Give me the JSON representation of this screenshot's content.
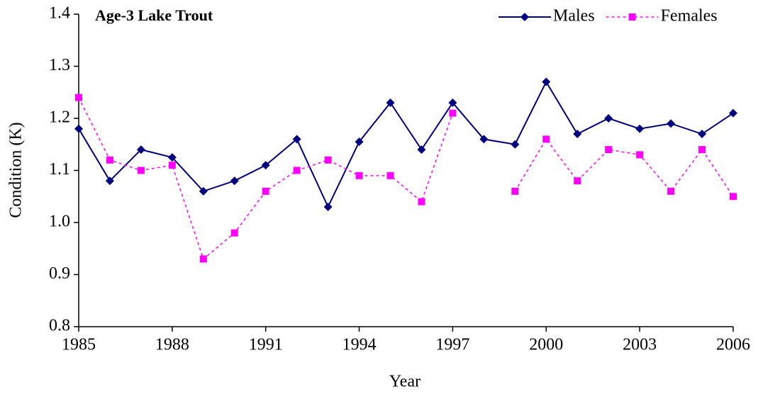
{
  "chart_data": {
    "type": "line",
    "title": "Age-3 Lake Trout",
    "xlabel": "Year",
    "ylabel": "Condition (K)",
    "x": [
      1985,
      1986,
      1987,
      1988,
      1989,
      1990,
      1991,
      1992,
      1993,
      1994,
      1995,
      1996,
      1997,
      1998,
      1999,
      2000,
      2001,
      2002,
      2003,
      2004,
      2005,
      2006
    ],
    "series": [
      {
        "name": "Males",
        "color": "#000080",
        "marker": "diamond",
        "dash": false,
        "values": [
          1.18,
          1.08,
          1.14,
          1.125,
          1.06,
          1.08,
          1.11,
          1.16,
          1.03,
          1.155,
          1.23,
          1.14,
          1.23,
          1.16,
          1.15,
          1.27,
          1.17,
          1.2,
          1.18,
          1.19,
          1.17,
          1.21
        ]
      },
      {
        "name": "Females",
        "color": "#ff00ff",
        "marker": "square",
        "dash": true,
        "values": [
          1.24,
          1.12,
          1.1,
          1.11,
          0.93,
          0.98,
          1.06,
          1.1,
          1.12,
          1.09,
          1.09,
          1.04,
          1.21,
          null,
          1.06,
          1.16,
          1.08,
          1.14,
          1.13,
          1.06,
          1.14,
          1.05
        ]
      }
    ],
    "xlim": [
      1985,
      2006
    ],
    "xticks": [
      1985,
      1988,
      1991,
      1994,
      1997,
      2000,
      2003,
      2006
    ],
    "ylim": [
      0.8,
      1.4
    ],
    "yticks": [
      0.8,
      0.9,
      {
        "value": 1,
        "label": "1.0"
      },
      1.1,
      1.2,
      1.3,
      1.4
    ],
    "grid": false,
    "legend": "top-right"
  }
}
